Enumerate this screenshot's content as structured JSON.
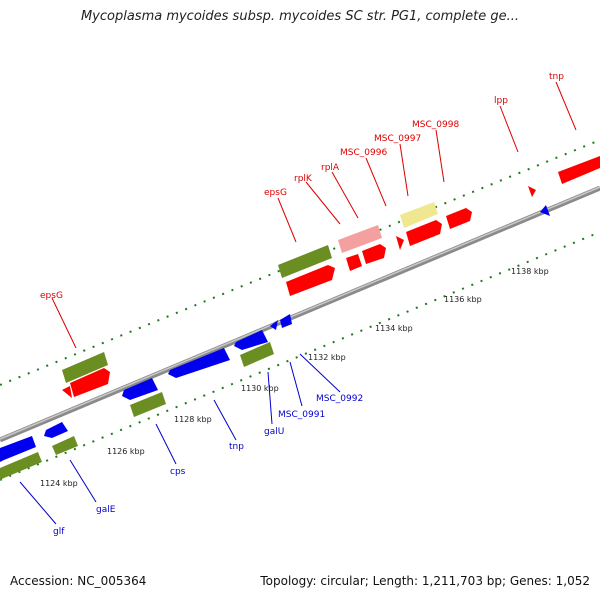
{
  "title": "Mycoplasma mycoides subsp. mycoides SC str. PG1, complete ge...",
  "footer": {
    "accession": "Accession: NC_005364",
    "topology": "Topology: circular; Length: 1,211,703 bp; Genes: 1,052"
  },
  "colors": {
    "backbone": "#909090",
    "forward_cds": "#ff0000",
    "reverse_cds": "#0000ee",
    "forward_gene": "#6b8e23",
    "reverse_gene": "#6b8e23",
    "rna_pink": "#f4a0a0",
    "rna_yellow": "#f0e890",
    "ticks": "#1f7a1f",
    "forward_label": "#dd0000",
    "reverse_label": "#0000cc"
  },
  "scale_labels": [
    "1124 kbp",
    "1126 kbp",
    "1128 kbp",
    "1130 kbp",
    "1132 kbp",
    "1134 kbp",
    "1136 kbp",
    "1138 kbp"
  ],
  "forward_labels": [
    "epsG",
    "epsG",
    "rplK",
    "rplA",
    "MSC_0996",
    "MSC_0997",
    "MSC_0998",
    "lpp",
    "tnp"
  ],
  "reverse_labels": [
    "glf",
    "galE",
    "cps",
    "tnp",
    "galU",
    "MSC_0991",
    "MSC_0992"
  ]
}
